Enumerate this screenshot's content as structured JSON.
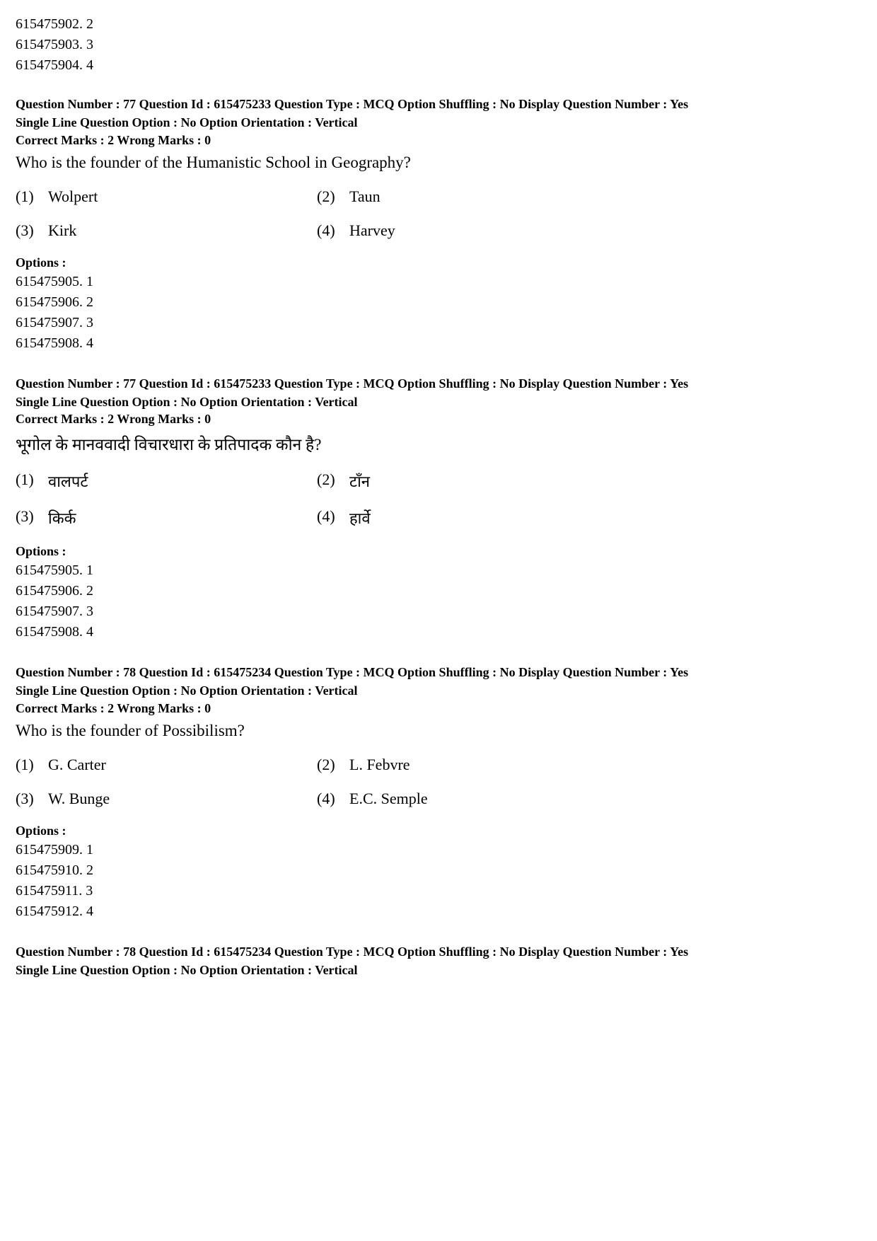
{
  "topOptions": {
    "lines": [
      "615475902. 2",
      "615475903. 3",
      "615475904. 4"
    ]
  },
  "q1": {
    "metaLine1": "Question Number : 77  Question Id : 615475233  Question Type : MCQ  Option Shuffling : No  Display Question Number : Yes",
    "metaLine2": "Single Line Question Option : No  Option Orientation : Vertical",
    "marks": "Correct Marks : 2  Wrong Marks : 0",
    "text": "Who is the founder of the Humanistic School in Geography?",
    "a1n": "(1)",
    "a1": "Wolpert",
    "a2n": "(2)",
    "a2": "Taun",
    "a3n": "(3)",
    "a3": "Kirk",
    "a4n": "(4)",
    "a4": "Harvey",
    "optLabel": "Options :",
    "opts": [
      "615475905. 1",
      "615475906. 2",
      "615475907. 3",
      "615475908. 4"
    ]
  },
  "q2": {
    "metaLine1": "Question Number : 77  Question Id : 615475233  Question Type : MCQ  Option Shuffling : No  Display Question Number : Yes",
    "metaLine2": "Single Line Question Option : No  Option Orientation : Vertical",
    "marks": "Correct Marks : 2  Wrong Marks : 0",
    "text": "भूगोल के मानववादी विचारधारा के प्रतिपादक कौन है?",
    "a1n": "(1)",
    "a1": "वालपर्ट",
    "a2n": "(2)",
    "a2": "टाँन",
    "a3n": "(3)",
    "a3": "किर्क",
    "a4n": "(4)",
    "a4": "हार्वे",
    "optLabel": "Options :",
    "opts": [
      "615475905. 1",
      "615475906. 2",
      "615475907. 3",
      "615475908. 4"
    ]
  },
  "q3": {
    "metaLine1": "Question Number : 78  Question Id : 615475234  Question Type : MCQ  Option Shuffling : No  Display Question Number : Yes",
    "metaLine2": "Single Line Question Option : No  Option Orientation : Vertical",
    "marks": "Correct Marks : 2  Wrong Marks : 0",
    "text": "Who is the founder of Possibilism?",
    "a1n": "(1)",
    "a1": "G. Carter",
    "a2n": "(2)",
    "a2": "L. Febvre",
    "a3n": "(3)",
    "a3": "W.  Bunge",
    "a4n": "(4)",
    "a4": "E.C. Semple",
    "optLabel": "Options :",
    "opts": [
      "615475909. 1",
      "615475910. 2",
      "615475911. 3",
      "615475912. 4"
    ]
  },
  "q4": {
    "metaLine1": "Question Number : 78  Question Id : 615475234  Question Type : MCQ  Option Shuffling : No  Display Question Number : Yes",
    "metaLine2": "Single Line Question Option : No  Option Orientation : Vertical"
  }
}
